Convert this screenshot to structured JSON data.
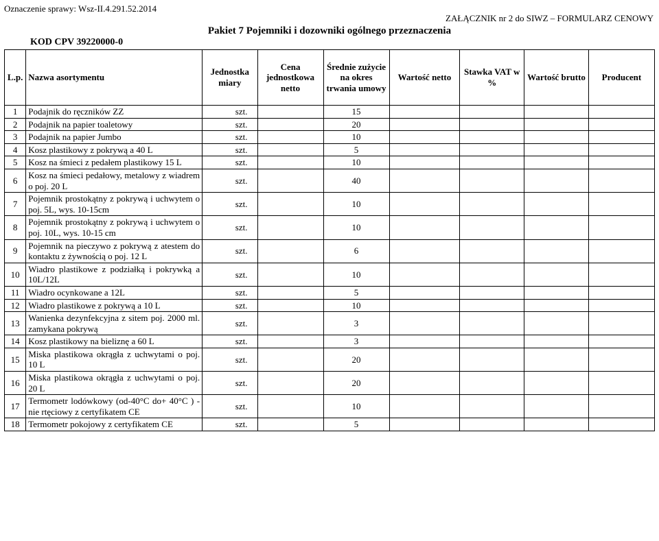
{
  "header": {
    "case_label": "Oznaczenie sprawy: Wsz-II.4.291.52.2014",
    "attachment_label": "ZAŁĄCZNIK nr 2 do SIWZ – FORMULARZ CENOWY",
    "packet_title": "Pakiet 7 Pojemniki i dozowniki ogólnego przeznaczenia",
    "kod_cpv": "KOD CPV 39220000-0"
  },
  "columns": {
    "lp": "L.p.",
    "name": "Nazwa asortymentu",
    "unit": "Jednostka miary",
    "price": "Cena jednostkowa netto",
    "usage": "Średnie zużycie na okres trwania umowy",
    "net": "Wartość netto",
    "vat": "Stawka VAT w %",
    "gross": "Wartość brutto",
    "producer": "Producent"
  },
  "rows": [
    {
      "lp": "1",
      "name": "Podajnik do ręczników ZZ",
      "unit": "szt.",
      "usage": "15"
    },
    {
      "lp": "2",
      "name": "Podajnik na papier toaletowy",
      "unit": "szt.",
      "usage": "20"
    },
    {
      "lp": "3",
      "name": "Podajnik na papier Jumbo",
      "unit": "szt.",
      "usage": "10"
    },
    {
      "lp": "4",
      "name": "Kosz plastikowy z pokrywą a 40 L",
      "unit": "szt.",
      "usage": "5"
    },
    {
      "lp": "5",
      "name": "Kosz na śmieci z pedałem plastikowy 15 L",
      "unit": "szt.",
      "usage": "10"
    },
    {
      "lp": "6",
      "name": "Kosz na śmieci pedałowy, metalowy z wiadrem o poj. 20 L",
      "unit": "szt.",
      "usage": "40"
    },
    {
      "lp": "7",
      "name": "Pojemnik prostokątny z pokrywą i uchwytem o poj. 5L, wys. 10-15cm",
      "unit": "szt.",
      "usage": "10"
    },
    {
      "lp": "8",
      "name": "Pojemnik prostokątny z pokrywą i uchwytem o poj. 10L, wys. 10-15 cm",
      "unit": "szt.",
      "usage": "10"
    },
    {
      "lp": "9",
      "name": "Pojemnik na pieczywo z pokrywą z atestem do kontaktu z żywnością o poj. 12 L",
      "unit": "szt.",
      "usage": "6"
    },
    {
      "lp": "10",
      "name": "Wiadro plastikowe z podziałką i pokrywką a 10L/12L",
      "unit": "szt.",
      "usage": "10"
    },
    {
      "lp": "11",
      "name": "Wiadro ocynkowane a 12L",
      "unit": "szt.",
      "usage": "5"
    },
    {
      "lp": "12",
      "name": "Wiadro plastikowe z pokrywą a 10 L",
      "unit": "szt.",
      "usage": "10"
    },
    {
      "lp": "13",
      "name": "Wanienka dezynfekcyjna z sitem poj. 2000 ml. zamykana pokrywą",
      "unit": "szt.",
      "usage": "3"
    },
    {
      "lp": "14",
      "name": "Kosz plastikowy na bieliznę a 60 L",
      "unit": "szt.",
      "usage": "3"
    },
    {
      "lp": "15",
      "name": "Miska plastikowa okrągła z uchwytami o poj. 10 L",
      "unit": "szt.",
      "usage": "20"
    },
    {
      "lp": "16",
      "name": "Miska plastikowa okrągła z uchwytami o poj. 20 L",
      "unit": "szt.",
      "usage": "20"
    },
    {
      "lp": "17",
      "name": "Termometr lodówkowy (od-40°C do+ 40°C ) - nie rtęciowy z certyfikatem CE",
      "unit": "szt.",
      "usage": "10"
    },
    {
      "lp": "18",
      "name": "Termometr pokojowy z certyfikatem CE",
      "unit": "szt.",
      "usage": "5"
    }
  ]
}
